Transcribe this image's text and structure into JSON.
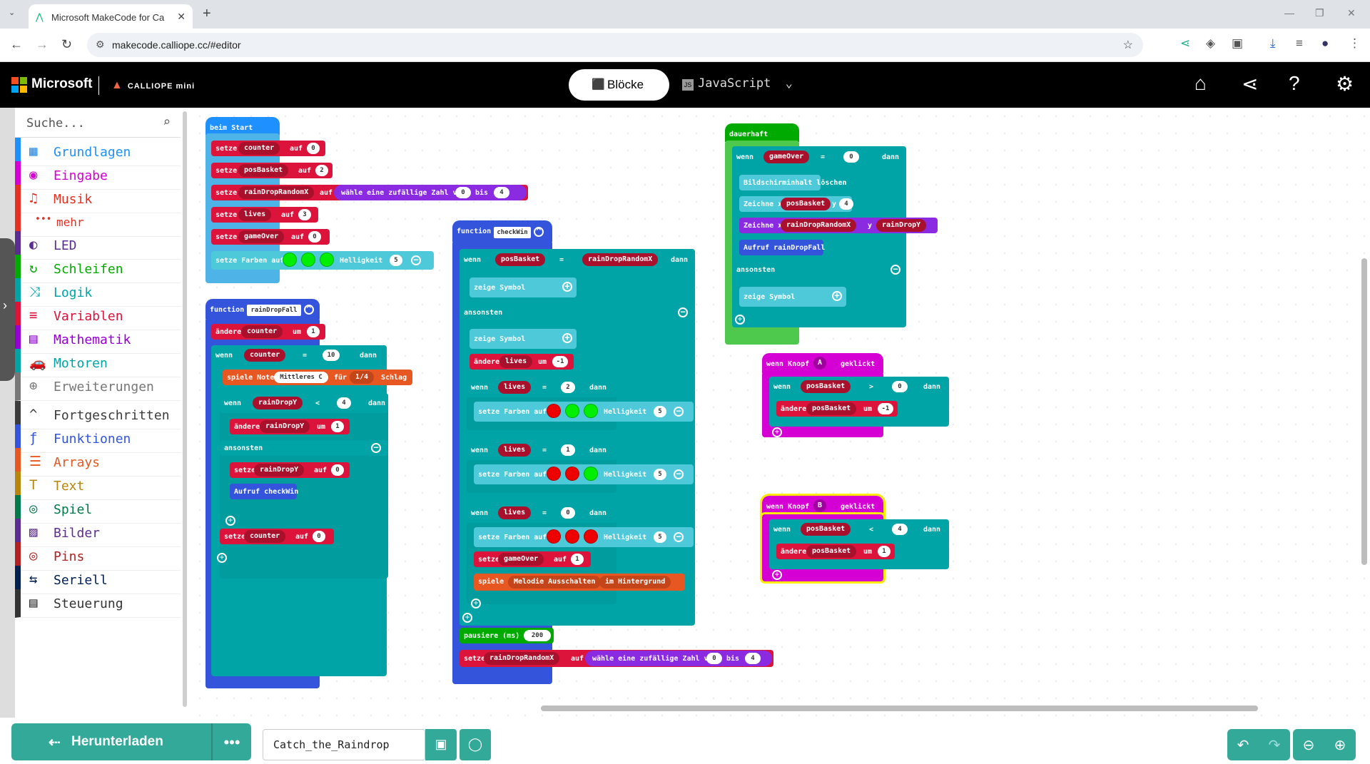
{
  "browser": {
    "tab_title": "Microsoft MakeCode for Ca",
    "url": "makecode.calliope.cc/#editor"
  },
  "header": {
    "brand": "Microsoft",
    "product": "CALLIOPE mini",
    "blocks_label": "Blöcke",
    "js_label": "JavaScript"
  },
  "toolbox": {
    "search_placeholder": "Suche...",
    "categories": [
      {
        "label": "Grundlagen",
        "color": "#1e90ff"
      },
      {
        "label": "Eingabe",
        "color": "#d400d4"
      },
      {
        "label": "Musik",
        "color": "#e63022"
      },
      {
        "label": "mehr",
        "color": "#e63022"
      },
      {
        "label": "LED",
        "color": "#5c2d91"
      },
      {
        "label": "Schleifen",
        "color": "#00aa00"
      },
      {
        "label": "Logik",
        "color": "#00a4a6"
      },
      {
        "label": "Variablen",
        "color": "#dc143c"
      },
      {
        "label": "Mathematik",
        "color": "#9400d3"
      },
      {
        "label": "Motoren",
        "color": "#00a4a6"
      },
      {
        "label": "Erweiterungen",
        "color": "#777777"
      },
      {
        "label": "Fortgeschritten",
        "color": "#3c3c3c"
      },
      {
        "label": "Funktionen",
        "color": "#3455db"
      },
      {
        "label": "Arrays",
        "color": "#e65722"
      },
      {
        "label": "Text",
        "color": "#b8860b"
      },
      {
        "label": "Spiel",
        "color": "#007a4b"
      },
      {
        "label": "Bilder",
        "color": "#5c2d91"
      },
      {
        "label": "Pins",
        "color": "#b22222"
      },
      {
        "label": "Seriell",
        "color": "#002050"
      },
      {
        "label": "Steuerung",
        "color": "#333333"
      }
    ]
  },
  "blocks": {
    "on_start": {
      "hat": "beim Start",
      "set": "setze",
      "to": "auf",
      "counter": "counter",
      "counter_val": "0",
      "posBasket": "posBasket",
      "posBasket_val": "2",
      "rainDropRandomX": "rainDropRandomX",
      "random": "wähle eine zufällige Zahl von",
      "from": "0",
      "bis": "bis",
      "to_val": "4",
      "lives": "lives",
      "lives_val": "3",
      "gameOver": "gameOver",
      "gameOver_val": "0",
      "colors": "setze Farben auf",
      "brightness": "Helligkeit",
      "brightness_val": "5"
    },
    "rainDropFall": {
      "function": "function",
      "name": "rainDropFall",
      "change": "ändere",
      "counter": "counter",
      "by": "um",
      "by_val": "1",
      "if": "wenn",
      "cmp_eq": "=",
      "ten": "10",
      "then": "dann",
      "play_note": "spiele Note",
      "note": "Mittleres C",
      "for": "für",
      "beat": "1/4",
      "beat_word": "Schlag",
      "rainDropY": "rainDropY",
      "lt": "<",
      "four": "4",
      "one": "1",
      "else": "ansonsten",
      "set": "setze",
      "to": "auf",
      "zero": "0",
      "call_checkwin": "Aufruf checkWin"
    },
    "checkWin": {
      "function": "function",
      "name": "checkWin",
      "if": "wenn",
      "posBasket": "posBasket",
      "eq": "=",
      "rainDropRandomX": "rainDropRandomX",
      "then": "dann",
      "show_icon": "zeige Symbol",
      "else": "ansonsten",
      "change": "ändere",
      "lives": "lives",
      "by": "um",
      "minus1": "-1",
      "two": "2",
      "one": "1",
      "zero": "0",
      "colors": "setze Farben auf",
      "brightness": "Helligkeit",
      "five": "5",
      "set": "setze",
      "gameOver": "gameOver",
      "to": "auf",
      "play": "spiele",
      "melody": "Melodie Ausschalten",
      "background": "im Hintergrund",
      "pause": "pausiere (ms)",
      "pause_val": "200",
      "rainDropRandomX_set": "rainDropRandomX",
      "random": "wähle eine zufällige Zahl von",
      "bis": "bis",
      "four": "4"
    },
    "forever": {
      "hat": "dauerhaft",
      "if": "wenn",
      "gameOver": "gameOver",
      "eq": "=",
      "zero": "0",
      "then": "dann",
      "clear": "Bildschirminhalt löschen",
      "plot_x": "Zeichne x",
      "posBasket": "posBasket",
      "y": "y",
      "four": "4",
      "rainDropRandomX": "rainDropRandomX",
      "rainDropY": "rainDropY",
      "call": "Aufruf rainDropFall",
      "else": "ansonsten",
      "show_icon": "zeige Symbol"
    },
    "button_a": {
      "hat": "wenn Knopf",
      "btn": "A",
      "clicked": "geklickt",
      "if": "wenn",
      "posBasket": "posBasket",
      "gt": ">",
      "zero": "0",
      "then": "dann",
      "change": "ändere",
      "by": "um",
      "minus1": "-1"
    },
    "button_b": {
      "hat": "wenn Knopf",
      "btn": "B",
      "clicked": "geklickt",
      "if": "wenn",
      "posBasket": "posBasket",
      "lt": "<",
      "four": "4",
      "then": "dann",
      "change": "ändere",
      "by": "um",
      "one": "1"
    }
  },
  "bottom": {
    "download": "Herunterladen",
    "more": "•••",
    "project_name": "Catch_the_Raindrop"
  }
}
